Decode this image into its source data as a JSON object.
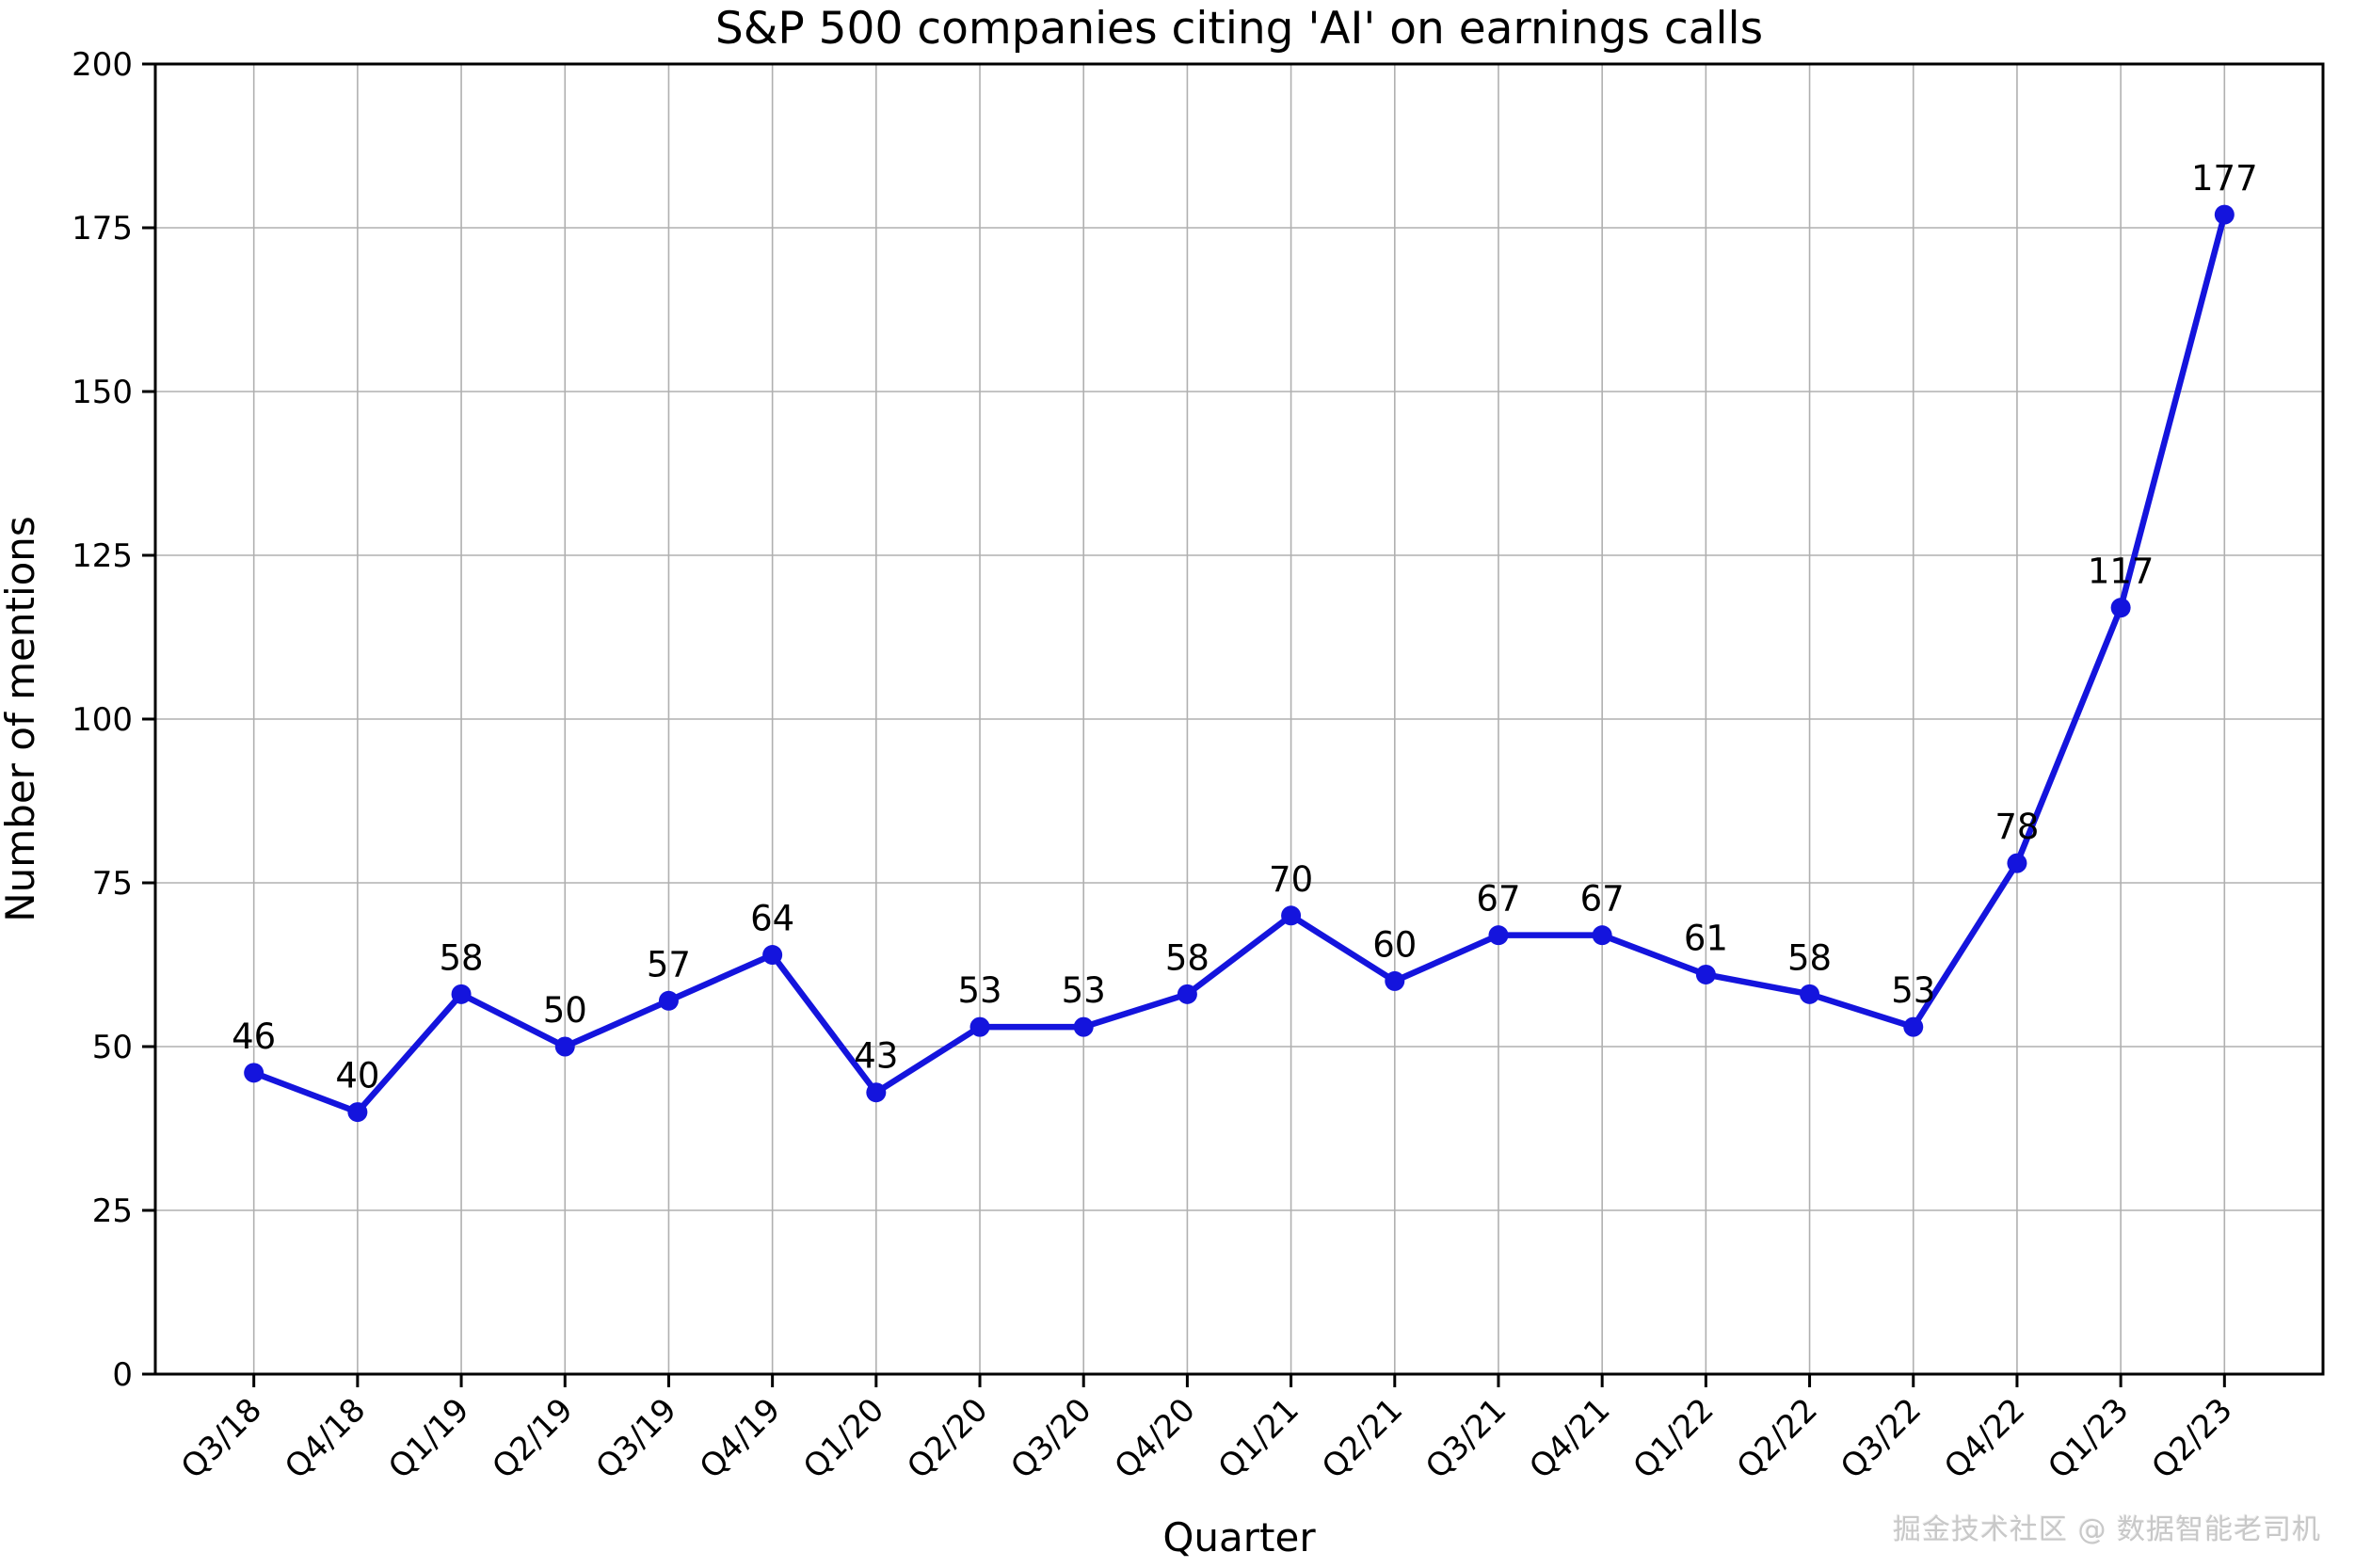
{
  "chart_data": {
    "type": "line",
    "title": "S&P 500 companies citing 'AI' on earnings calls",
    "xlabel": "Quarter",
    "ylabel": "Number of mentions",
    "categories": [
      "Q3/18",
      "Q4/18",
      "Q1/19",
      "Q2/19",
      "Q3/19",
      "Q4/19",
      "Q1/20",
      "Q2/20",
      "Q3/20",
      "Q4/20",
      "Q1/21",
      "Q2/21",
      "Q3/21",
      "Q4/21",
      "Q1/22",
      "Q2/22",
      "Q3/22",
      "Q4/22",
      "Q1/23",
      "Q2/23"
    ],
    "values": [
      46,
      40,
      58,
      50,
      57,
      64,
      43,
      53,
      53,
      58,
      70,
      60,
      67,
      67,
      61,
      58,
      53,
      78,
      117,
      177
    ],
    "ylim": [
      0,
      200
    ],
    "ytick_step": 25,
    "grid": true,
    "legend": "none",
    "line_color": "#1414dd",
    "marker": "circle",
    "text_color": "#000000",
    "grid_color": "#b0b0b0"
  },
  "watermark": {
    "text": "掘金技术社区 @ 数据智能老司机"
  }
}
